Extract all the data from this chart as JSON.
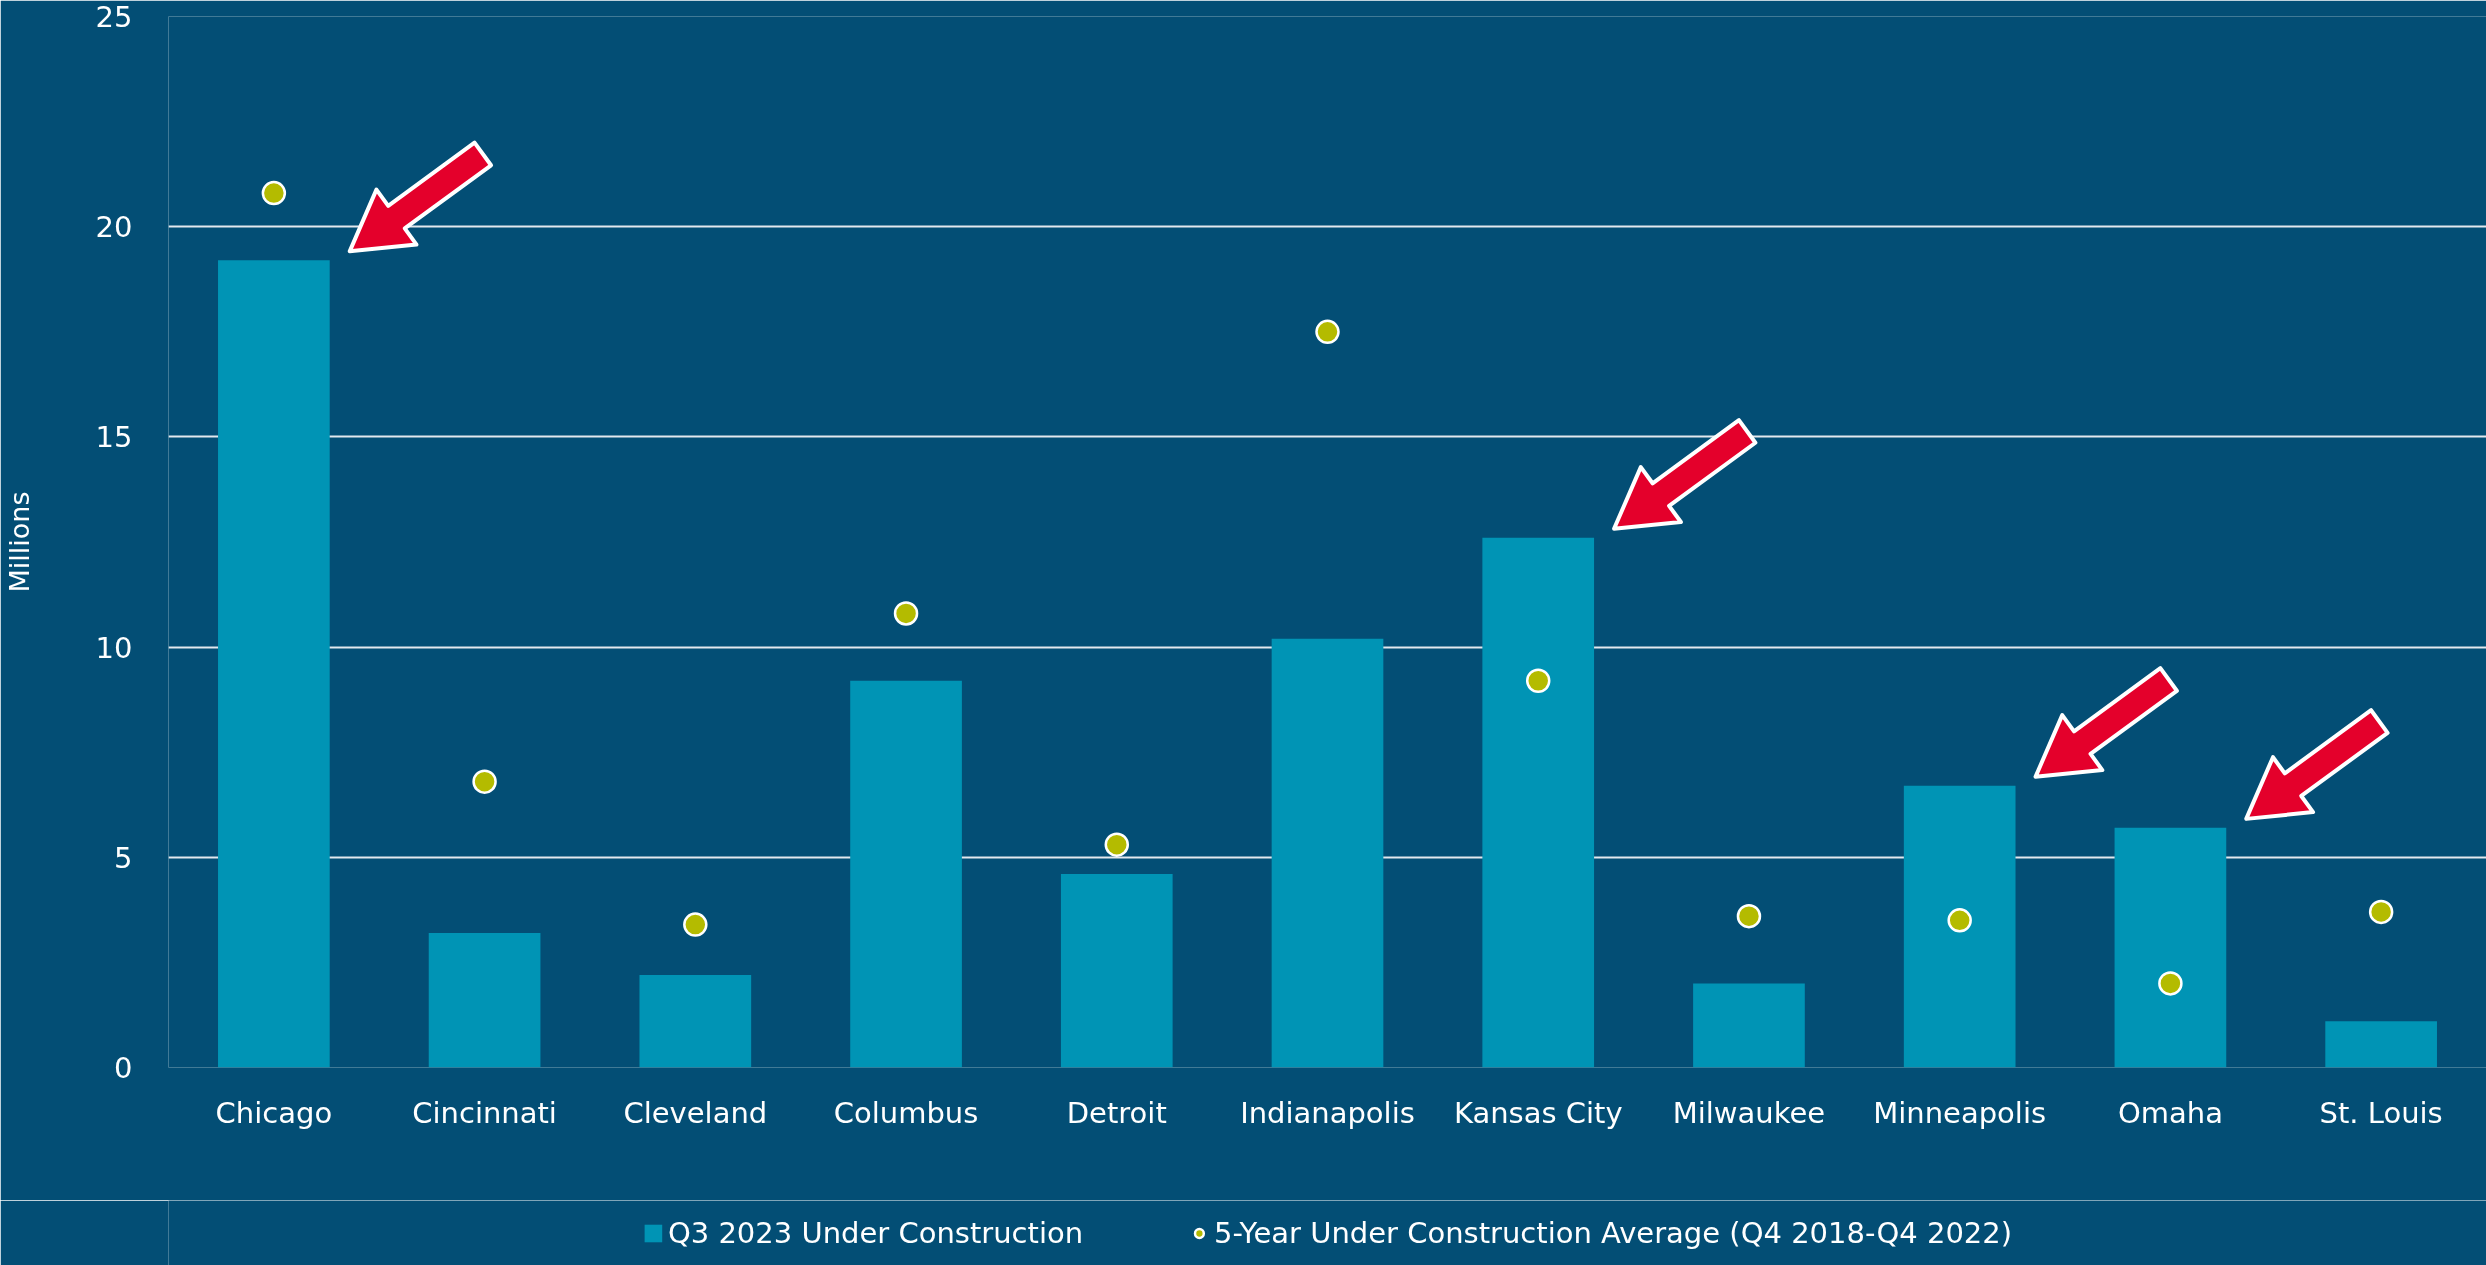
{
  "chart_data": {
    "type": "bar",
    "ylabel": "Millions",
    "categories": [
      "Chicago",
      "Cincinnati",
      "Cleveland",
      "Columbus",
      "Detroit",
      "Indianapolis",
      "Kansas City",
      "Milwaukee",
      "Minneapolis",
      "Omaha",
      "St. Louis"
    ],
    "ylim": [
      0,
      25
    ],
    "yticks": [
      0,
      5,
      10,
      15,
      20,
      25
    ],
    "grid": "y",
    "legend": "bottom",
    "marker": "circle",
    "series": [
      {
        "name": "Q3 2023 Under Construction",
        "color": "#0094b5",
        "values": [
          19.2,
          3.2,
          2.2,
          9.2,
          4.6,
          10.2,
          12.6,
          2.0,
          6.7,
          5.7,
          1.1
        ]
      },
      {
        "name": "5-Year Under Construction Average (Q4 2018-Q4 2022)",
        "type": "scatter",
        "color": "#b4bb00",
        "values": [
          20.8,
          6.8,
          3.4,
          10.8,
          5.3,
          17.5,
          9.2,
          3.6,
          3.5,
          2.0,
          3.7
        ]
      }
    ]
  }
}
